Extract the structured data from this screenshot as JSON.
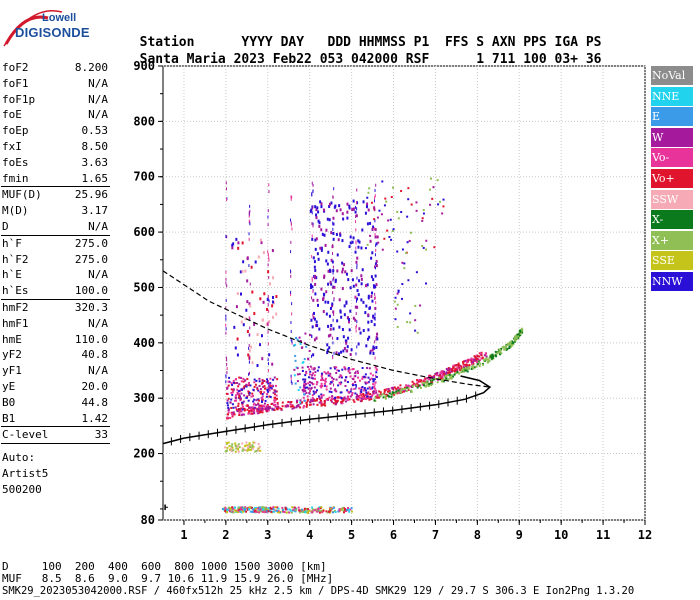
{
  "header": {
    "logo_line1": "Lowell",
    "logo_line2": "DIGISONDE",
    "columns": [
      "Station",
      "YYYY",
      "DAY",
      "DDD",
      "HHMMSS",
      "P1",
      "FFS",
      "S",
      "AXN",
      "PPS",
      "IGA",
      "PS"
    ],
    "values": [
      "Santa Maria",
      "2023",
      "Feb22",
      "053",
      "042000",
      "RSF",
      "1",
      "711",
      "100",
      "03+",
      "36"
    ]
  },
  "params": [
    [
      {
        "k": "foF2",
        "v": "8.200"
      },
      {
        "k": "foF1",
        "v": "N/A"
      },
      {
        "k": "foF1p",
        "v": "N/A"
      },
      {
        "k": "foE",
        "v": "N/A"
      },
      {
        "k": "foEp",
        "v": "0.53"
      },
      {
        "k": "fxI",
        "v": "8.50"
      },
      {
        "k": "foEs",
        "v": "3.63"
      },
      {
        "k": "fmin",
        "v": "1.65"
      }
    ],
    [
      {
        "k": "MUF(D)",
        "v": "25.96"
      },
      {
        "k": "M(D)",
        "v": "3.17"
      },
      {
        "k": "D",
        "v": "N/A"
      }
    ],
    [
      {
        "k": "h`F",
        "v": "275.0"
      },
      {
        "k": "h`F2",
        "v": "275.0"
      },
      {
        "k": "h`E",
        "v": "N/A"
      },
      {
        "k": "h`Es",
        "v": "100.0"
      }
    ],
    [
      {
        "k": "hmF2",
        "v": "320.3"
      },
      {
        "k": "hmF1",
        "v": "N/A"
      },
      {
        "k": "hmE",
        "v": "110.0"
      },
      {
        "k": "yF2",
        "v": "40.8"
      },
      {
        "k": "yF1",
        "v": "N/A"
      },
      {
        "k": "yE",
        "v": "20.0"
      },
      {
        "k": "B0",
        "v": "44.8"
      },
      {
        "k": "B1",
        "v": "1.42"
      }
    ],
    [
      {
        "k": "C-level",
        "v": "33"
      }
    ]
  ],
  "auto": [
    "Auto:",
    "Artist5",
    "500200"
  ],
  "legend": [
    {
      "label": "NoVal",
      "color": "#8c8c8c"
    },
    {
      "label": "NNE",
      "color": "#22d3ee"
    },
    {
      "label": "E",
      "color": "#3b9be8"
    },
    {
      "label": "W",
      "color": "#a51a9c"
    },
    {
      "label": "Vo-",
      "color": "#e8349a"
    },
    {
      "label": "Vo+",
      "color": "#e0142c"
    },
    {
      "label": "SSW",
      "color": "#f5aab5"
    },
    {
      "label": "X-",
      "color": "#0b7a1c"
    },
    {
      "label": "X+",
      "color": "#8fbf55"
    },
    {
      "label": "SSE",
      "color": "#c4c41a"
    },
    {
      "label": "NNW",
      "color": "#2a10d6"
    }
  ],
  "footer": {
    "d_label": "D",
    "d_values": [
      "100",
      "200",
      "400",
      "600",
      "800",
      "1000",
      "1500",
      "3000",
      "[km]"
    ],
    "muf_label": "MUF",
    "muf_values": [
      "8.5",
      "8.6",
      "9.0",
      "9.7",
      "10.6",
      "11.9",
      "15.9",
      "26.0",
      "[MHz]"
    ],
    "file_line": "SMK29_2023053042000.RSF / 460fx512h 25 kHz 2.5 km / DPS-4D SMK29 129 / 29.7 S 306.3 E Ion2Png 1.3.20"
  },
  "chart_data": {
    "type": "scatter",
    "title": "",
    "xlabel": "",
    "ylabel": "",
    "xlim": [
      0.5,
      12
    ],
    "ylim": [
      80,
      900
    ],
    "x_ticks": [
      1,
      2,
      3,
      4,
      5,
      6,
      7,
      8,
      9,
      10,
      11,
      12
    ],
    "y_ticks": [
      80,
      200,
      300,
      400,
      500,
      600,
      700,
      800,
      900
    ],
    "grid": true,
    "legend_position": "right",
    "series": [
      {
        "name": "O-trace (Vo+/Vo-)",
        "color": "#e0142c",
        "x": [
          2.0,
          3.0,
          4.0,
          5.0,
          6.0,
          7.0,
          7.6,
          8.2
        ],
        "y": [
          272,
          285,
          293,
          300,
          315,
          340,
          360,
          380
        ]
      },
      {
        "name": "X-trace (X+/X-)",
        "color": "#8fbf55",
        "x": [
          5.5,
          6.5,
          7.5,
          8.2,
          8.8,
          9.0
        ],
        "y": [
          300,
          320,
          345,
          370,
          400,
          420
        ]
      },
      {
        "name": "Es trace",
        "color": "#8fbf55",
        "x": [
          1.9,
          2.5,
          3.0,
          4.0,
          5.0
        ],
        "y": [
          100,
          100,
          100,
          100,
          100
        ]
      },
      {
        "name": "Spread F echoes (NNW)",
        "color": "#2a10d6",
        "x": [
          2.2,
          3.0,
          4.0,
          5.0,
          5.5
        ],
        "y": [
          320,
          420,
          500,
          560,
          650
        ]
      },
      {
        "name": "Profile hmF2",
        "color": "#000000",
        "x": [
          0.5,
          2.0,
          4.0,
          6.0,
          7.5,
          8.2
        ],
        "y": [
          220,
          240,
          262,
          278,
          295,
          320
        ]
      },
      {
        "name": "Model profile",
        "color": "#000000",
        "x": [
          0.5,
          2.0,
          4.0,
          6.0,
          7.5,
          8.2
        ],
        "y": [
          530,
          450,
          390,
          350,
          330,
          320
        ]
      }
    ]
  }
}
